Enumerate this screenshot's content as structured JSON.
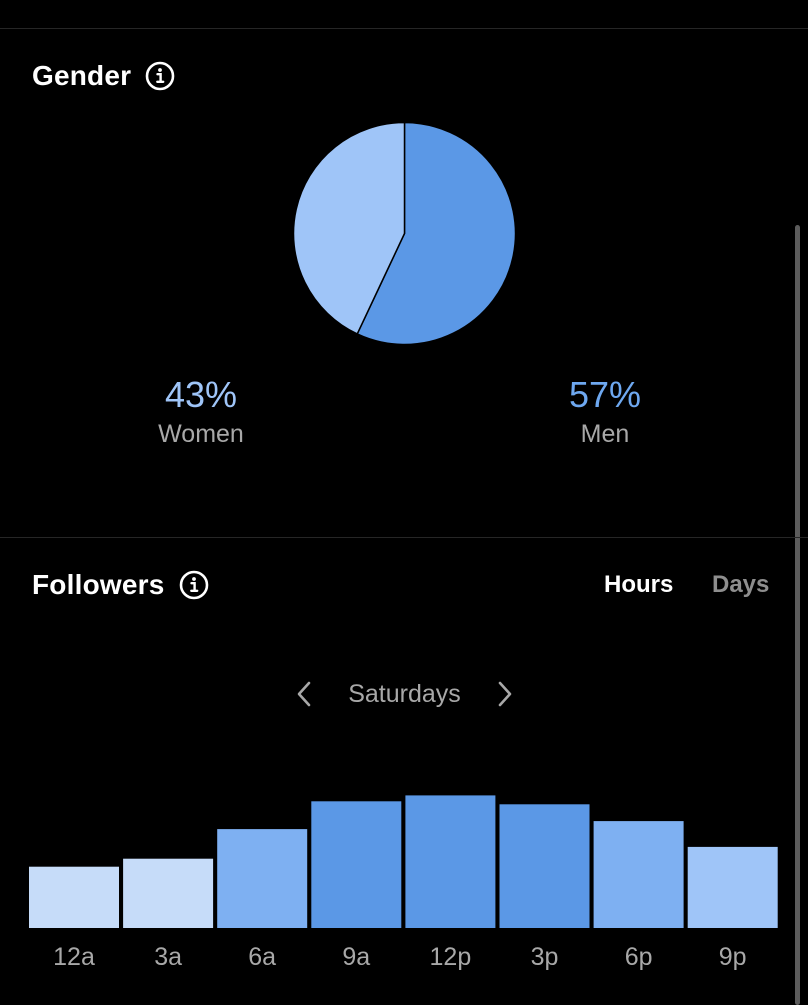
{
  "gender": {
    "title": "Gender",
    "info_icon": "info-circle-icon",
    "women": {
      "value": "43%",
      "label": "Women",
      "percent": 43,
      "color": "#9fc5f8",
      "text_color": "#9fc5f8"
    },
    "men": {
      "value": "57%",
      "label": "Men",
      "percent": 57,
      "color": "#5b98e6",
      "text_color": "#6ea8f0"
    }
  },
  "followers": {
    "title": "Followers",
    "info_icon": "info-circle-icon",
    "toggle": {
      "hours": "Hours",
      "days": "Days",
      "selected": "Hours"
    },
    "day_nav": {
      "prev_icon": "chevron-left-icon",
      "label": "Saturdays",
      "next_icon": "chevron-right-icon"
    }
  },
  "colors": {
    "background": "#000000",
    "divider": "#262626",
    "muted_text": "#a8a8a8"
  },
  "chart_data": [
    {
      "type": "pie",
      "title": "",
      "categories": [
        "Women",
        "Men"
      ],
      "values": [
        43,
        57
      ],
      "colors": [
        "#9fc5f8",
        "#5b98e6"
      ]
    },
    {
      "type": "bar",
      "title": "",
      "xlabel": "",
      "ylabel": "",
      "categories": [
        "12a",
        "3a",
        "6a",
        "9a",
        "12p",
        "3p",
        "6p",
        "9p"
      ],
      "values": [
        62,
        70,
        100,
        128,
        134,
        125,
        108,
        82
      ],
      "colors": [
        "#c6dcf9",
        "#c6dcf9",
        "#7eb0f2",
        "#5b98e6",
        "#5b98e6",
        "#5b98e6",
        "#7eb0f2",
        "#9fc5f8"
      ],
      "ylim": [
        0,
        190
      ],
      "grid": false,
      "legend": "none"
    }
  ]
}
